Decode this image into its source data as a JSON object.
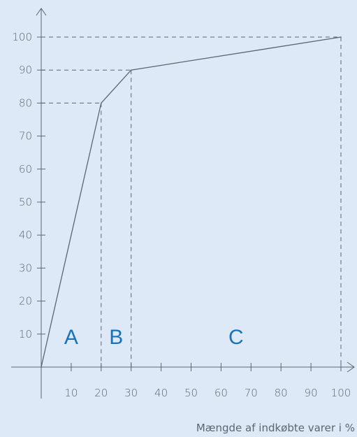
{
  "chart_data": {
    "type": "line",
    "title": "",
    "xlabel": "Mængde af indkøbte varer i %",
    "ylabel": "",
    "xlim": [
      0,
      100
    ],
    "ylim": [
      0,
      100
    ],
    "x_ticks": [
      10,
      20,
      30,
      40,
      50,
      60,
      70,
      80,
      90,
      100
    ],
    "y_ticks": [
      10,
      20,
      30,
      40,
      50,
      60,
      70,
      80,
      90,
      100
    ],
    "series": [
      {
        "x": [
          0,
          20,
          30,
          100
        ],
        "y": [
          0,
          80,
          90,
          100
        ]
      }
    ],
    "reference_points": [
      {
        "x": 20,
        "y": 80
      },
      {
        "x": 30,
        "y": 90
      },
      {
        "x": 100,
        "y": 100
      }
    ],
    "regions": [
      {
        "label": "A",
        "x": 10
      },
      {
        "label": "B",
        "x": 25
      },
      {
        "label": "C",
        "x": 65
      }
    ],
    "grid": false,
    "colors": {
      "background": "#dde9f6",
      "axis": "#5b6670",
      "line": "#5b6670",
      "region_label": "#1a73b8"
    }
  }
}
